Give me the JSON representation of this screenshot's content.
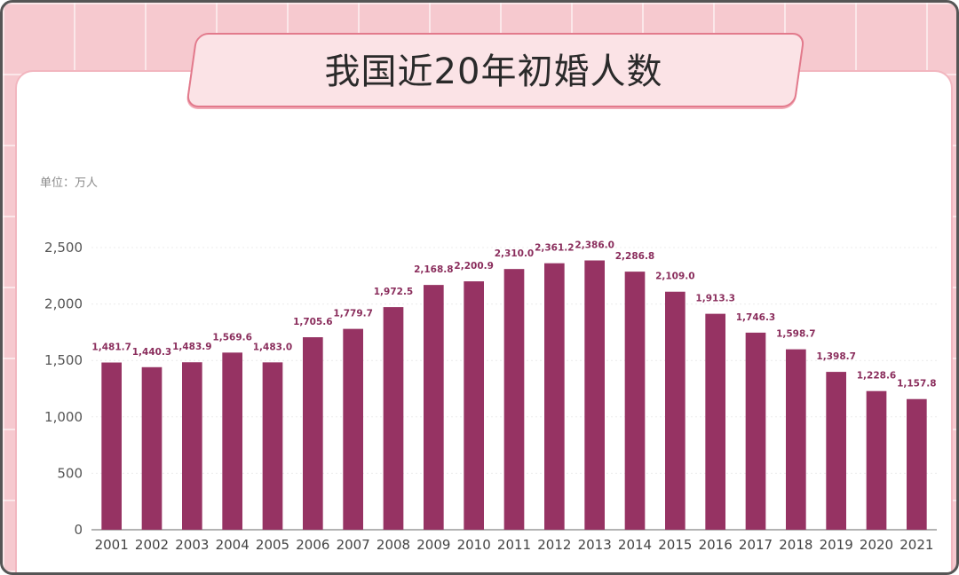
{
  "title": "我国近20年初婚人数",
  "unit_label": "单位：万人",
  "colors": {
    "bar": "#963363",
    "label": "#8a2d5c",
    "frame_bg": "#f6c9cf"
  },
  "chart_data": {
    "type": "bar",
    "title": "我国近20年初婚人数",
    "ylabel": "单位：万人",
    "ylim": [
      0,
      2500
    ],
    "yticks": [
      "0",
      "500",
      "1,000",
      "1,500",
      "2,000",
      "2,500"
    ],
    "grid": true,
    "categories": [
      "2001",
      "2002",
      "2003",
      "2004",
      "2005",
      "2006",
      "2007",
      "2008",
      "2009",
      "2010",
      "2011",
      "2012",
      "2013",
      "2014",
      "2015",
      "2016",
      "2017",
      "2018",
      "2019",
      "2020",
      "2021"
    ],
    "values": [
      1481.7,
      1440.3,
      1483.9,
      1569.6,
      1483.0,
      1705.6,
      1779.7,
      1972.5,
      2168.8,
      2200.9,
      2310.0,
      2361.2,
      2386.0,
      2286.8,
      2109.0,
      1913.3,
      1746.3,
      1598.7,
      1398.7,
      1228.6,
      1157.8
    ],
    "value_labels": [
      "1,481.7",
      "1,440.3",
      "1,483.9",
      "1,569.6",
      "1,483.0",
      "1,705.6",
      "1,779.7",
      "1,972.5",
      "2,168.8",
      "2,200.9",
      "2,310.0",
      "2,361.2",
      "2,386.0",
      "2,286.8",
      "2,109.0",
      "1,913.3",
      "1,746.3",
      "1,598.7",
      "1,398.7",
      "1,228.6",
      "1,157.8"
    ]
  }
}
